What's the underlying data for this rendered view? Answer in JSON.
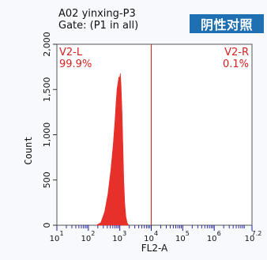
{
  "header": {
    "title_line1": "A02 yinxing-P3",
    "title_line2": "Gate: (P1 in all)",
    "badge": "阴性对照"
  },
  "chart_data": {
    "type": "area",
    "title": "A02 yinxing-P3",
    "subtitle": "Gate: (P1 in all)",
    "xlabel": "FL2-A",
    "ylabel": "Count",
    "xscale": "log",
    "xlim": [
      10,
      15848932
    ],
    "ylim": [
      0,
      2000
    ],
    "x_ticks": [
      {
        "value": 10,
        "base": "10",
        "exp": "1"
      },
      {
        "value": 100,
        "base": "10",
        "exp": "2"
      },
      {
        "value": 1000,
        "base": "10",
        "exp": "3"
      },
      {
        "value": 10000,
        "base": "10",
        "exp": "4"
      },
      {
        "value": 100000,
        "base": "10",
        "exp": "5"
      },
      {
        "value": 1000000,
        "base": "10",
        "exp": "6"
      },
      {
        "value": 15848932,
        "base": "10",
        "exp": "7.2"
      }
    ],
    "y_ticks": [
      "0",
      "500",
      "1,000",
      "1,500",
      "2,000"
    ],
    "y_tick_values": [
      0,
      500,
      1000,
      1500,
      2000
    ],
    "series": [
      {
        "color": "#e8302a",
        "x": [
          180,
          250,
          330,
          420,
          520,
          620,
          700,
          760,
          820,
          880,
          930,
          980,
          1040,
          1100,
          1180,
          1260,
          1340,
          1430,
          1550,
          1700,
          1900
        ],
        "y": [
          0,
          30,
          150,
          350,
          620,
          900,
          1150,
          1350,
          1510,
          1580,
          1640,
          1620,
          1680,
          1540,
          1250,
          850,
          500,
          250,
          100,
          30,
          0
        ]
      }
    ],
    "gate_marker": {
      "x": 10000
    },
    "regions": [
      {
        "name": "V2-L",
        "percent": "99.9%",
        "color": "#d42020"
      },
      {
        "name": "V2-R",
        "percent": "0.1%",
        "color": "#d42020"
      }
    ],
    "grid": false
  }
}
